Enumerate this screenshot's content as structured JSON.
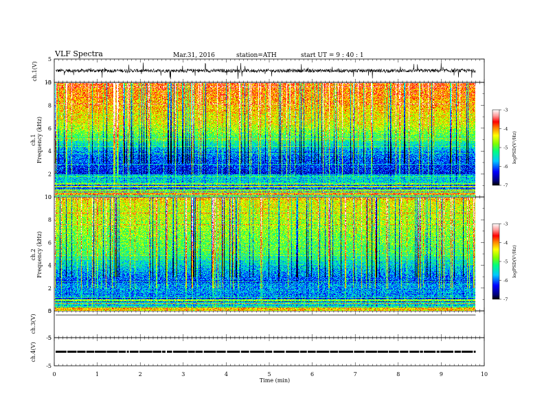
{
  "header": {
    "title": "VLF  Spectra",
    "date": "Mar.31, 2016",
    "station": "station=ATH",
    "start": "start  UT  =   9  : 40 : 1"
  },
  "chart_data": [
    {
      "type": "line",
      "ylabel": "ch.1(V)",
      "ylim": [
        -5,
        5
      ],
      "y_ticks": [
        "5",
        "-5"
      ],
      "xlim": [
        0,
        10
      ],
      "description_values": {
        "baseline": 0,
        "noise_amplitude": 1.5
      }
    },
    {
      "type": "heatmap",
      "ylabel_top": "ch.1",
      "ylabel": "Frequency  (kHz)",
      "ylim": [
        0,
        10
      ],
      "y_ticks": [
        "0",
        "2",
        "4",
        "6",
        "8",
        "10"
      ],
      "xlim": [
        0,
        10
      ],
      "colorbar": {
        "label": "logPSD(V²/Hz)",
        "ticks": [
          "-3",
          "-4",
          "-5",
          "-6",
          "-7"
        ],
        "range": [
          -7,
          -3
        ]
      }
    },
    {
      "type": "heatmap",
      "ylabel_top": "ch.2",
      "ylabel": "Frequency  (kHz)",
      "ylim": [
        0,
        10
      ],
      "y_ticks": [
        "0",
        "2",
        "4",
        "6",
        "8",
        "10"
      ],
      "xlim": [
        0,
        10
      ],
      "colorbar": {
        "label": "logPSD(V²/Hz)",
        "ticks": [
          "-3",
          "-4",
          "-5",
          "-6",
          "-7"
        ],
        "range": [
          -7,
          -3
        ]
      }
    },
    {
      "type": "line",
      "ylabel": "ch.3(V)",
      "ylim": [
        -5,
        5
      ],
      "y_ticks": [
        "5",
        "-5"
      ],
      "xlim": [
        0,
        10
      ],
      "description_values": {
        "baseline": 5
      }
    },
    {
      "type": "line",
      "ylabel": "ch.4(V)",
      "ylim": [
        -5,
        5
      ],
      "y_ticks": [
        "5",
        "-5"
      ],
      "xlim": [
        0,
        10
      ],
      "description_values": {
        "baseline": 0
      }
    }
  ],
  "xaxis": {
    "label": "Time  (min)",
    "ticks": [
      "0",
      "1",
      "2",
      "3",
      "4",
      "5",
      "6",
      "7",
      "8",
      "9",
      "10"
    ],
    "data_end": 9.8
  }
}
